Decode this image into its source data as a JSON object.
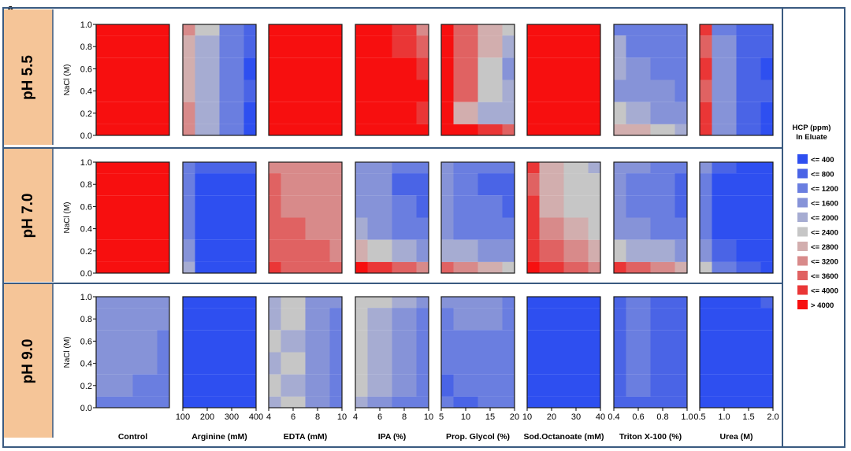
{
  "panel_label": "A",
  "chart_data": {
    "type": "heatmap",
    "subtype": "contour",
    "value_label": "HCP (ppm) in Eluate",
    "legend": {
      "title_line1": "HCP (ppm)",
      "title_line2": "In Eluate",
      "entries": [
        {
          "label": "<= 400",
          "color": "#2e4ff0"
        },
        {
          "label": "<= 800",
          "color": "#4a64e6"
        },
        {
          "label": "<= 1200",
          "color": "#6a7ee0"
        },
        {
          "label": "<= 1600",
          "color": "#8693d8"
        },
        {
          "label": "<= 2000",
          "color": "#a6acd2"
        },
        {
          "label": "<= 2400",
          "color": "#c6c6c6"
        },
        {
          "label": "<= 2800",
          "color": "#d2aeae"
        },
        {
          "label": "<= 3200",
          "color": "#d88a8a"
        },
        {
          "label": "<= 3600",
          "color": "#e06262"
        },
        {
          "label": "<= 4000",
          "color": "#ea3636"
        },
        {
          "label": "> 4000",
          "color": "#f70f0f"
        }
      ]
    },
    "rows": [
      "pH 5.5",
      "pH 7.0",
      "pH 9.0"
    ],
    "ylabel": "NaCl (M)",
    "ylim": [
      0,
      1
    ],
    "y_ticks": [
      "1.0",
      "0.8",
      "0.6",
      "0.4",
      "0.2",
      "0.0"
    ],
    "columns": [
      {
        "xlabel": "Control",
        "x_ticks": []
      },
      {
        "xlabel": "Arginine (mM)",
        "x_ticks": [
          "100",
          "200",
          "300",
          "400"
        ]
      },
      {
        "xlabel": "EDTA (mM)",
        "x_ticks": [
          "4",
          "6",
          "8",
          "10"
        ]
      },
      {
        "xlabel": "IPA (%)",
        "x_ticks": [
          "4",
          "6",
          "8",
          "10"
        ]
      },
      {
        "xlabel": "Prop. Glycol (%)",
        "x_ticks": [
          "5",
          "10",
          "15",
          "20"
        ]
      },
      {
        "xlabel": "Sod.Octanoate (mM)",
        "x_ticks": [
          "10",
          "20",
          "30",
          "40"
        ]
      },
      {
        "xlabel": "Triton X-100 (%)",
        "x_ticks": [
          "0.4",
          "0.6",
          "0.8",
          "1.0"
        ]
      },
      {
        "xlabel": "Urea (M)",
        "x_ticks": [
          "0.5",
          "1.0",
          "1.5",
          "2.0"
        ]
      }
    ],
    "grid_level_index": [
      [
        [
          [
            10,
            10,
            10,
            10
          ],
          [
            10,
            10,
            10,
            10
          ],
          [
            10,
            10,
            10,
            10
          ],
          [
            10,
            10,
            10,
            10
          ],
          [
            10,
            10,
            10,
            10
          ],
          [
            10,
            10,
            10,
            10
          ]
        ],
        [
          [
            7,
            5,
            2,
            1
          ],
          [
            6,
            4,
            2,
            1
          ],
          [
            6,
            4,
            2,
            0
          ],
          [
            6,
            4,
            2,
            1
          ],
          [
            7,
            4,
            2,
            0
          ],
          [
            7,
            4,
            2,
            0
          ]
        ],
        [
          [
            10,
            10,
            10,
            10
          ],
          [
            10,
            10,
            10,
            10
          ],
          [
            10,
            10,
            10,
            10
          ],
          [
            10,
            10,
            10,
            10
          ],
          [
            10,
            10,
            10,
            10
          ],
          [
            10,
            10,
            10,
            10
          ]
        ],
        [
          [
            10,
            10,
            9,
            7
          ],
          [
            10,
            10,
            9,
            8
          ],
          [
            10,
            10,
            10,
            9
          ],
          [
            10,
            10,
            10,
            10
          ],
          [
            10,
            10,
            10,
            9
          ],
          [
            10,
            10,
            10,
            10
          ]
        ],
        [
          [
            10,
            8,
            6,
            5
          ],
          [
            10,
            8,
            6,
            4
          ],
          [
            10,
            8,
            5,
            3
          ],
          [
            10,
            8,
            5,
            4
          ],
          [
            10,
            6,
            4,
            4
          ],
          [
            10,
            10,
            9,
            8
          ]
        ],
        [
          [
            10,
            10,
            10,
            10
          ],
          [
            10,
            10,
            10,
            10
          ],
          [
            10,
            10,
            10,
            10
          ],
          [
            10,
            10,
            10,
            10
          ],
          [
            10,
            10,
            10,
            10
          ],
          [
            10,
            10,
            10,
            10
          ]
        ],
        [
          [
            2,
            2,
            2,
            2
          ],
          [
            4,
            2,
            2,
            2
          ],
          [
            4,
            3,
            2,
            2
          ],
          [
            3,
            3,
            3,
            2
          ],
          [
            5,
            4,
            3,
            3
          ],
          [
            6,
            6,
            5,
            4
          ]
        ],
        [
          [
            9,
            2,
            1,
            1
          ],
          [
            8,
            3,
            1,
            1
          ],
          [
            9,
            3,
            1,
            0
          ],
          [
            8,
            3,
            1,
            1
          ],
          [
            9,
            3,
            1,
            0
          ],
          [
            9,
            3,
            1,
            0
          ]
        ]
      ],
      [
        [
          [
            10,
            10,
            10,
            10
          ],
          [
            10,
            10,
            10,
            10
          ],
          [
            10,
            10,
            10,
            10
          ],
          [
            10,
            10,
            10,
            10
          ],
          [
            10,
            10,
            10,
            10
          ],
          [
            10,
            10,
            10,
            10
          ]
        ],
        [
          [
            2,
            1,
            1,
            1
          ],
          [
            2,
            0,
            0,
            0
          ],
          [
            2,
            0,
            0,
            0
          ],
          [
            2,
            0,
            0,
            0
          ],
          [
            3,
            0,
            0,
            0
          ],
          [
            4,
            0,
            0,
            0
          ]
        ],
        [
          [
            7,
            7,
            7,
            7
          ],
          [
            8,
            7,
            7,
            7
          ],
          [
            8,
            7,
            7,
            7
          ],
          [
            8,
            8,
            7,
            7
          ],
          [
            8,
            8,
            8,
            7
          ],
          [
            9,
            8,
            8,
            8
          ]
        ],
        [
          [
            3,
            3,
            2,
            2
          ],
          [
            3,
            3,
            1,
            1
          ],
          [
            3,
            3,
            2,
            1
          ],
          [
            4,
            3,
            2,
            2
          ],
          [
            6,
            5,
            4,
            3
          ],
          [
            10,
            9,
            8,
            7
          ]
        ],
        [
          [
            3,
            2,
            2,
            2
          ],
          [
            3,
            2,
            1,
            1
          ],
          [
            3,
            2,
            2,
            1
          ],
          [
            3,
            2,
            2,
            2
          ],
          [
            4,
            4,
            3,
            3
          ],
          [
            8,
            7,
            6,
            5
          ]
        ],
        [
          [
            9,
            6,
            5,
            4
          ],
          [
            8,
            6,
            5,
            5
          ],
          [
            9,
            6,
            5,
            5
          ],
          [
            9,
            7,
            6,
            5
          ],
          [
            9,
            8,
            7,
            6
          ],
          [
            10,
            9,
            8,
            7
          ]
        ],
        [
          [
            3,
            3,
            2,
            2
          ],
          [
            3,
            2,
            2,
            1
          ],
          [
            3,
            2,
            2,
            1
          ],
          [
            3,
            3,
            2,
            2
          ],
          [
            5,
            4,
            4,
            3
          ],
          [
            9,
            8,
            7,
            6
          ]
        ],
        [
          [
            3,
            1,
            0,
            0
          ],
          [
            2,
            0,
            0,
            0
          ],
          [
            2,
            0,
            0,
            0
          ],
          [
            2,
            0,
            0,
            0
          ],
          [
            3,
            1,
            0,
            0
          ],
          [
            5,
            2,
            1,
            0
          ]
        ]
      ],
      [
        [
          [
            3,
            3,
            3,
            3
          ],
          [
            3,
            3,
            3,
            3
          ],
          [
            3,
            3,
            3,
            2
          ],
          [
            3,
            3,
            3,
            2
          ],
          [
            3,
            3,
            2,
            2
          ],
          [
            2,
            2,
            2,
            2
          ]
        ],
        [
          [
            0,
            0,
            0,
            0
          ],
          [
            0,
            0,
            0,
            0
          ],
          [
            0,
            0,
            0,
            0
          ],
          [
            0,
            0,
            0,
            0
          ],
          [
            0,
            0,
            0,
            0
          ],
          [
            0,
            0,
            0,
            0
          ]
        ],
        [
          [
            4,
            5,
            3,
            3
          ],
          [
            4,
            5,
            3,
            2
          ],
          [
            5,
            4,
            3,
            2
          ],
          [
            4,
            5,
            3,
            2
          ],
          [
            5,
            4,
            3,
            2
          ],
          [
            4,
            5,
            3,
            2
          ]
        ],
        [
          [
            5,
            5,
            4,
            3
          ],
          [
            5,
            4,
            3,
            2
          ],
          [
            5,
            4,
            3,
            2
          ],
          [
            5,
            4,
            3,
            2
          ],
          [
            5,
            4,
            3,
            2
          ],
          [
            4,
            3,
            2,
            2
          ]
        ],
        [
          [
            3,
            3,
            3,
            2
          ],
          [
            2,
            3,
            3,
            2
          ],
          [
            2,
            2,
            2,
            2
          ],
          [
            2,
            2,
            2,
            2
          ],
          [
            1,
            2,
            2,
            2
          ],
          [
            2,
            1,
            2,
            2
          ]
        ],
        [
          [
            0,
            0,
            0,
            0
          ],
          [
            0,
            0,
            0,
            0
          ],
          [
            0,
            0,
            0,
            0
          ],
          [
            0,
            0,
            0,
            0
          ],
          [
            0,
            0,
            0,
            0
          ],
          [
            0,
            0,
            0,
            0
          ]
        ],
        [
          [
            1,
            2,
            1,
            1
          ],
          [
            1,
            2,
            1,
            1
          ],
          [
            1,
            2,
            1,
            1
          ],
          [
            1,
            2,
            1,
            1
          ],
          [
            1,
            2,
            1,
            1
          ],
          [
            1,
            1,
            1,
            1
          ]
        ],
        [
          [
            0,
            0,
            0,
            1
          ],
          [
            0,
            0,
            0,
            0
          ],
          [
            0,
            0,
            0,
            0
          ],
          [
            0,
            0,
            0,
            0
          ],
          [
            0,
            0,
            0,
            0
          ],
          [
            0,
            0,
            0,
            0
          ]
        ]
      ]
    ]
  }
}
